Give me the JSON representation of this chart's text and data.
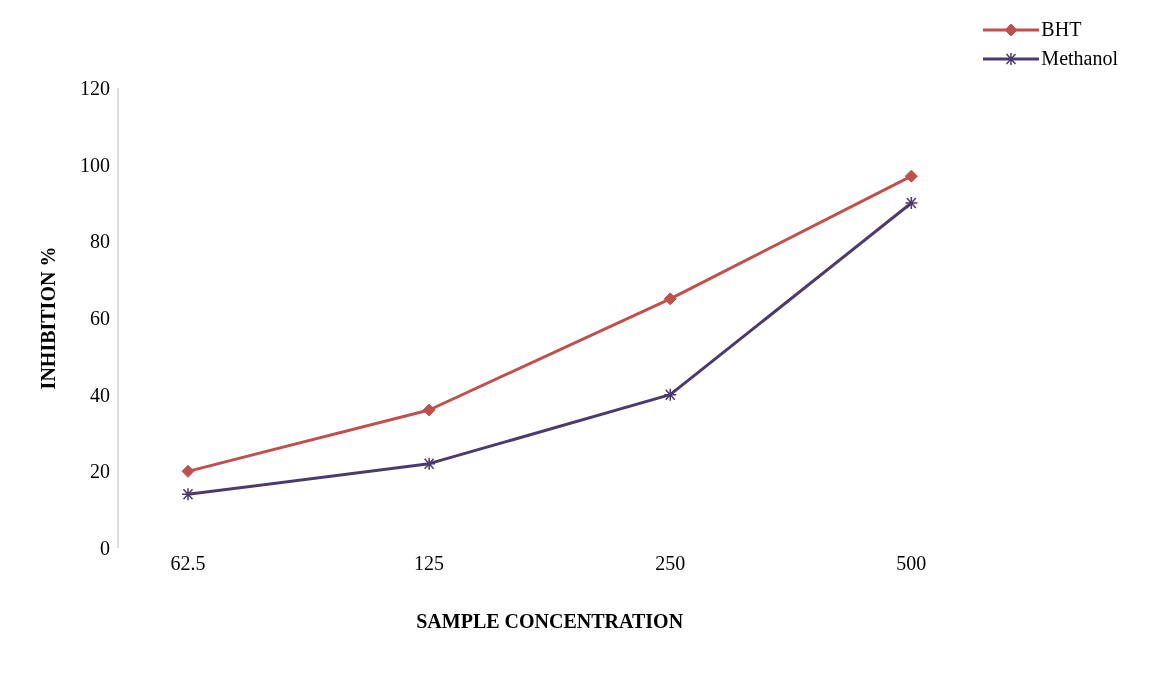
{
  "chart_data": {
    "type": "line",
    "xlabel": "SAMPLE CONCENTRATION",
    "ylabel": "INHIBITION %",
    "categories": [
      "62.5",
      "125",
      "250",
      "500"
    ],
    "series": [
      {
        "name": "BHT",
        "color": "#c0504d",
        "marker": "diamond",
        "values": [
          20,
          36,
          65,
          97
        ]
      },
      {
        "name": "Methanol",
        "color": "#4b3a6b",
        "marker": "cross",
        "values": [
          14,
          22,
          40,
          90
        ]
      }
    ],
    "ylim": [
      0,
      120
    ],
    "yticks": [
      0,
      20,
      40,
      60,
      80,
      100,
      120
    ],
    "grid": false,
    "legend": "top right"
  }
}
